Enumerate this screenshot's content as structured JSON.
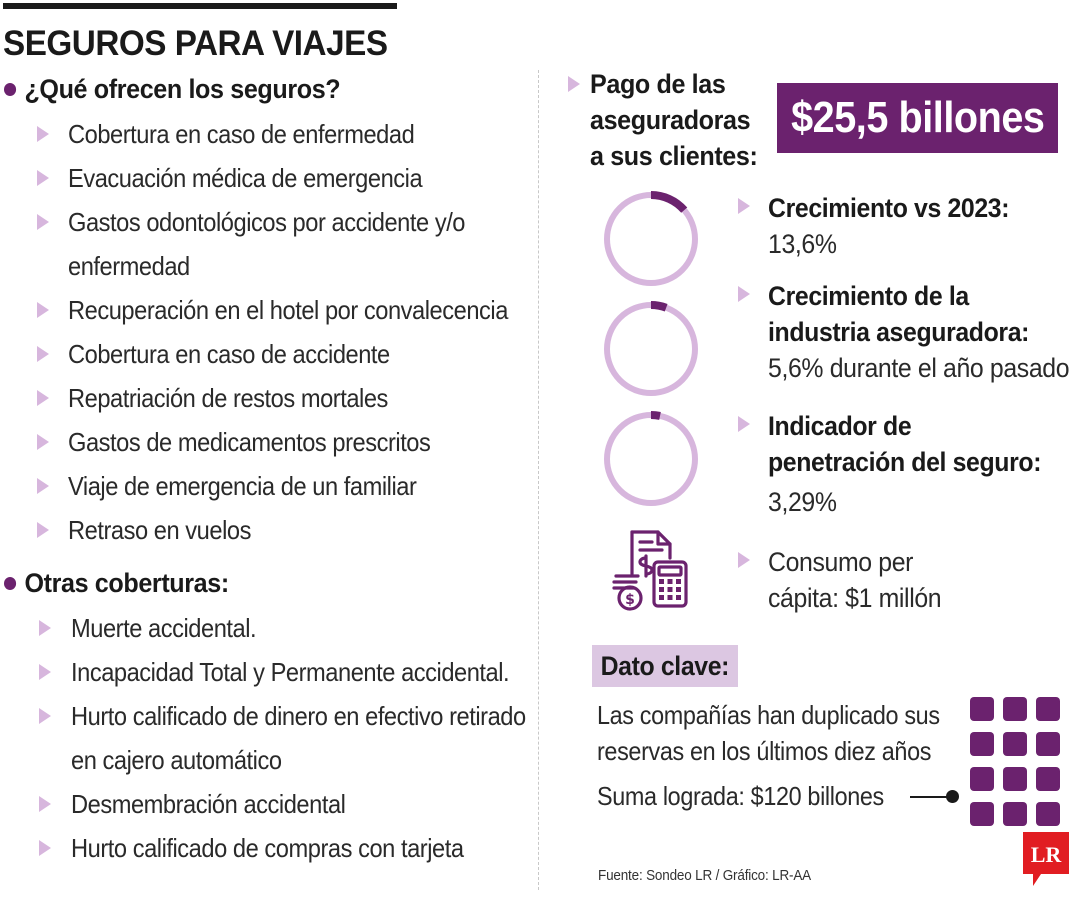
{
  "colors": {
    "purple": "#6b226e",
    "purple_light": "#d7b6dd",
    "dato_bg": "#dcc7e2",
    "logo_red": "#e11d22"
  },
  "header": {
    "title": "SEGUROS PARA VIAJES"
  },
  "offers": {
    "heading": "¿Qué ofrecen los seguros?",
    "items": [
      "Cobertura en caso de enfermedad",
      "Evacuación médica de emergencia",
      "Gastos odontológicos por accidente y/o enfermedad",
      "Recuperación en el hotel por convalecencia",
      "Cobertura en caso de accidente",
      "Repatriación de restos mortales",
      "Gastos de medicamentos prescritos",
      "Viaje de emergencia de un familiar",
      "Retraso en vuelos"
    ]
  },
  "other": {
    "heading": "Otras coberturas:",
    "items": [
      "Muerte accidental.",
      "Incapacidad Total y Permanente accidental.",
      "Hurto calificado de dinero en efectivo retirado en cajero automático",
      "Desmembración accidental",
      "Hurto calificado de compras con tarjeta"
    ]
  },
  "payment": {
    "label_line1": "Pago de las",
    "label_line2": "aseguradoras",
    "label_line3": "a sus clientes:",
    "value": "$25,5 billones"
  },
  "stats": [
    {
      "head": "Crecimiento vs 2023:",
      "value": "13,6%",
      "ring_fraction": 0.136
    },
    {
      "head_line1": "Crecimiento de la",
      "head_line2": "industria aseguradora:",
      "value_bold": "5,6%",
      "value_rest": " durante el año pasado",
      "ring_fraction": 0.056
    },
    {
      "head_line1": "Indicador de",
      "head_line2": "penetración del seguro:",
      "value": "3,29%",
      "ring_fraction": 0.0329
    },
    {
      "line1": "Consumo per",
      "line2_prefix": "cápita: ",
      "line2_value": "$1 millón",
      "icon": "calculator-money-icon"
    }
  ],
  "key_fact": {
    "label": "Dato clave:",
    "line1": "Las compañías han duplicado sus",
    "line2": "reservas en los últimos diez años",
    "sum_prefix": "Suma lograda: ",
    "sum_value": "$120 billones"
  },
  "footer": {
    "source": "Fuente: Sondeo LR / Gráfico: LR-AA",
    "logo_text": "LR"
  }
}
